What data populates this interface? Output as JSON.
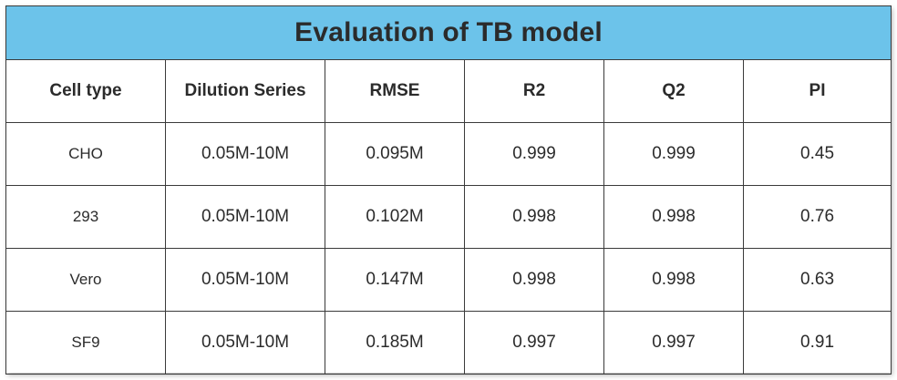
{
  "chart_data": {
    "type": "table",
    "title": "Evaluation of TB model",
    "columns": [
      "Cell type",
      "Dilution Series",
      "RMSE",
      "R2",
      "Q2",
      "PI"
    ],
    "rows": [
      [
        "CHO",
        "0.05M-10M",
        "0.095M",
        "0.999",
        "0.999",
        "0.45"
      ],
      [
        "293",
        "0.05M-10M",
        "0.102M",
        "0.998",
        "0.998",
        "0.76"
      ],
      [
        "Vero",
        "0.05M-10M",
        "0.147M",
        "0.998",
        "0.998",
        "0.63"
      ],
      [
        "SF9",
        "0.05M-10M",
        "0.185M",
        "0.997",
        "0.997",
        "0.91"
      ]
    ]
  },
  "colors": {
    "title_background": "#6cc3ea",
    "border": "#3a3a3a"
  }
}
